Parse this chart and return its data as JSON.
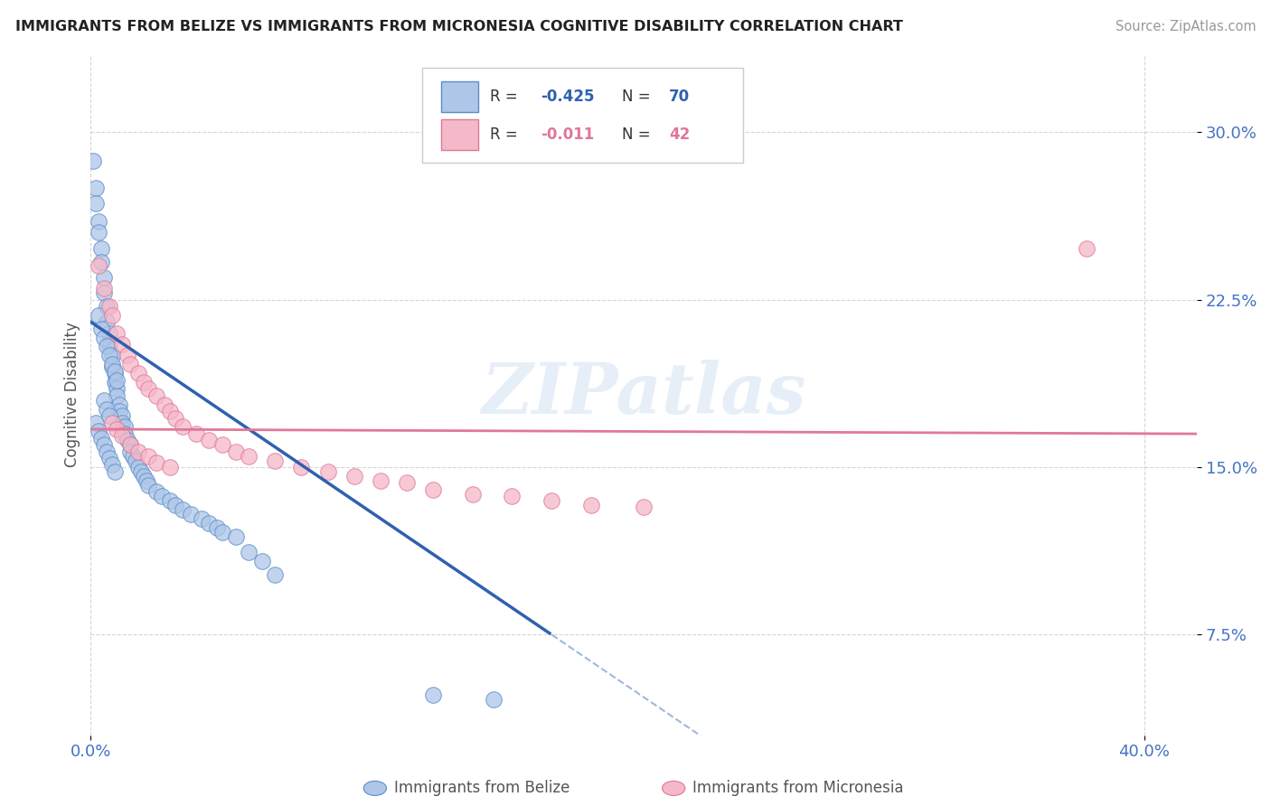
{
  "title": "IMMIGRANTS FROM BELIZE VS IMMIGRANTS FROM MICRONESIA COGNITIVE DISABILITY CORRELATION CHART",
  "source": "Source: ZipAtlas.com",
  "ylabel": "Cognitive Disability",
  "ytick_vals": [
    0.075,
    0.15,
    0.225,
    0.3
  ],
  "ytick_labels": [
    "7.5%",
    "15.0%",
    "22.5%",
    "30.0%"
  ],
  "xtick_vals": [
    0.0,
    0.4
  ],
  "xtick_labels": [
    "0.0%",
    "40.0%"
  ],
  "xlim": [
    0.0,
    0.42
  ],
  "ylim": [
    0.03,
    0.335
  ],
  "belize_R": -0.425,
  "belize_N": 70,
  "micronesia_R": -0.011,
  "micronesia_N": 42,
  "belize_fill": "#aec6e8",
  "belize_edge": "#5b8dc8",
  "micronesia_fill": "#f5b8c8",
  "micronesia_edge": "#e07898",
  "belize_line_color": "#3060b0",
  "micronesia_line_color": "#e07898",
  "tick_color": "#4472c4",
  "watermark": "ZIPatlas",
  "legend_box_color": "#cccccc",
  "bottom_label_belize": "Immigrants from Belize",
  "bottom_label_micronesia": "Immigrants from Micronesia"
}
